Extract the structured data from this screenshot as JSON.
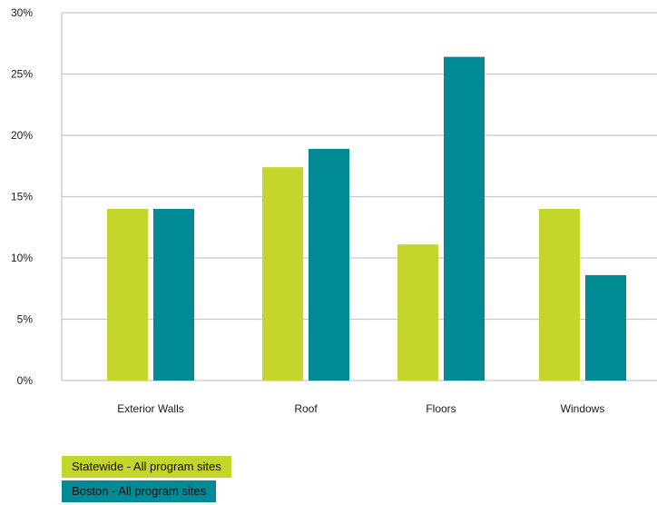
{
  "chart_data": {
    "type": "bar",
    "categories": [
      "Exterior Walls",
      "Roof",
      "Floors",
      "Windows"
    ],
    "series": [
      {
        "name": "Statewide - All program sites",
        "color": "#c4d52b",
        "values": [
          14.0,
          17.4,
          11.1,
          14.0
        ]
      },
      {
        "name": "Boston - All program sites",
        "color": "#008a94",
        "values": [
          14.0,
          18.9,
          26.4,
          8.6
        ]
      }
    ],
    "yticks": [
      "0%",
      "5%",
      "10%",
      "15%",
      "20%",
      "25%",
      "30%"
    ],
    "ylim": [
      0,
      30
    ],
    "grid": true,
    "legend_position": "bottom-left"
  }
}
